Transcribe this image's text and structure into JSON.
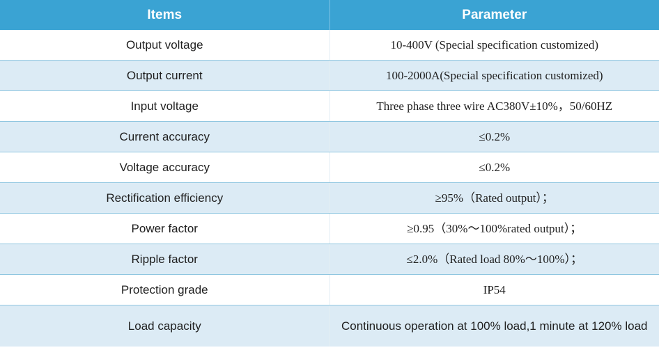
{
  "header": {
    "items": "Items",
    "parameter": "Parameter"
  },
  "rows": [
    {
      "item": "Output voltage",
      "value": "10-400V (Special specification customized)"
    },
    {
      "item": "Output current",
      "value": "100-2000A(Special specification customized)"
    },
    {
      "item": "Input voltage",
      "value": "Three phase three wire  AC380V±10%，50/60HZ"
    },
    {
      "item": "Current accuracy",
      "value": "≤0.2%"
    },
    {
      "item": "Voltage accuracy",
      "value": "≤0.2%"
    },
    {
      "item": "Rectification efficiency",
      "value": "≥95%（Rated output）；"
    },
    {
      "item": "Power factor",
      "value": "≥0.95（30%～100%rated output）；"
    },
    {
      "item": "Ripple factor",
      "value": "≤2.0%（Rated load 80%～100%）；"
    },
    {
      "item": "Protection grade",
      "value": "IP54"
    },
    {
      "item": "Load capacity",
      "value": "Continuous operation at 100% load,1 minute at 120% load"
    }
  ]
}
